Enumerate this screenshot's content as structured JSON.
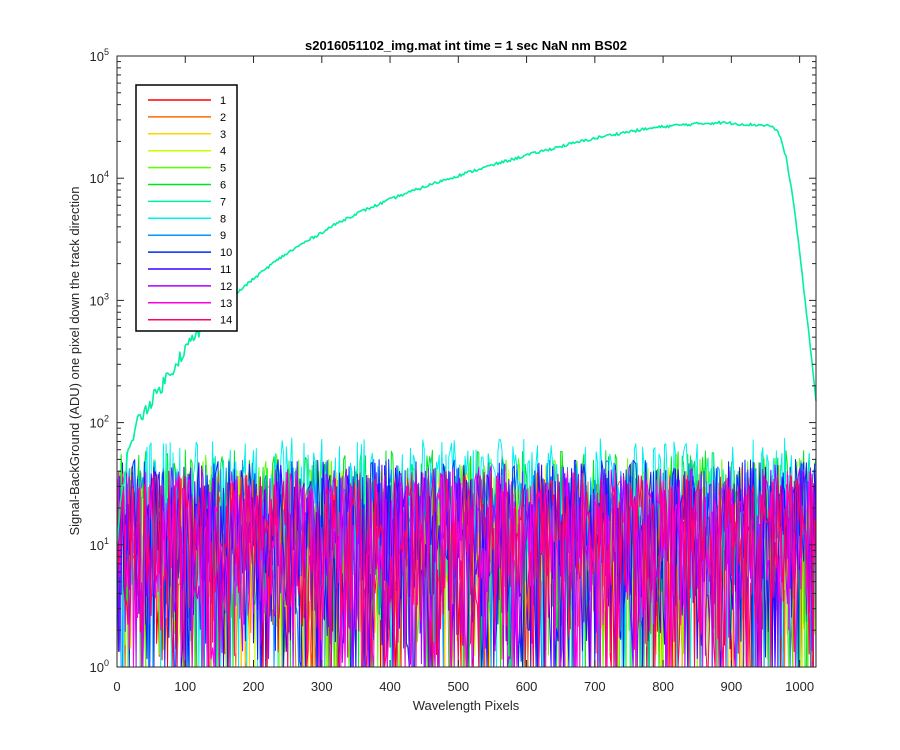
{
  "chart_data": {
    "type": "line",
    "title": "s2016051102_img.mat int time = 1 sec  NaN nm BS02",
    "xlabel": "Wavelength Pixels",
    "ylabel": "Signal-BackGround (ADU) one pixel down the track direction",
    "x_scale": "linear",
    "y_scale": "log",
    "xlim": [
      0,
      1024
    ],
    "ylim": [
      1,
      100000
    ],
    "x_ticks": [
      0,
      100,
      200,
      300,
      400,
      500,
      600,
      700,
      800,
      900,
      1000
    ],
    "x_tick_labels": [
      "0",
      "100",
      "200",
      "300",
      "400",
      "500",
      "600",
      "700",
      "800",
      "900",
      "1000"
    ],
    "y_ticks": [
      1,
      10,
      100,
      1000,
      10000,
      100000
    ],
    "y_tick_labels": [
      {
        "base": "10",
        "exp": "0"
      },
      {
        "base": "10",
        "exp": "1"
      },
      {
        "base": "10",
        "exp": "2"
      },
      {
        "base": "10",
        "exp": "3"
      },
      {
        "base": "10",
        "exp": "4"
      },
      {
        "base": "10",
        "exp": "5"
      }
    ],
    "grid": false,
    "legend_position": "top-left",
    "series": [
      {
        "name": "1",
        "color": "#ff0000",
        "kind": "noise",
        "low": 1,
        "high": 35
      },
      {
        "name": "2",
        "color": "#ff6a00",
        "kind": "noise",
        "low": 1,
        "high": 35
      },
      {
        "name": "3",
        "color": "#ffd200",
        "kind": "noise",
        "low": 1,
        "high": 40
      },
      {
        "name": "4",
        "color": "#c8ff00",
        "kind": "noise",
        "low": 1,
        "high": 45
      },
      {
        "name": "5",
        "color": "#5aff00",
        "kind": "noise",
        "low": 1,
        "high": 55
      },
      {
        "name": "6",
        "color": "#00e61e",
        "kind": "noise",
        "low": 2,
        "high": 60
      },
      {
        "name": "7",
        "color": "#00f0a0",
        "kind": "signal",
        "x": [
          0,
          5,
          10,
          15,
          20,
          30,
          40,
          50,
          60,
          70,
          80,
          90,
          100,
          110,
          120,
          130,
          140,
          150,
          160,
          170,
          180,
          190,
          200,
          220,
          240,
          260,
          280,
          300,
          320,
          340,
          360,
          380,
          400,
          420,
          440,
          460,
          480,
          500,
          520,
          540,
          560,
          580,
          600,
          620,
          640,
          660,
          680,
          700,
          720,
          740,
          760,
          780,
          800,
          820,
          840,
          860,
          880,
          900,
          920,
          940,
          950,
          960,
          970,
          980,
          990,
          1000,
          1010,
          1020,
          1024
        ],
        "y": [
          10,
          20,
          35,
          50,
          70,
          100,
          125,
          150,
          180,
          220,
          270,
          330,
          400,
          470,
          550,
          640,
          740,
          850,
          960,
          1080,
          1200,
          1350,
          1500,
          1850,
          2250,
          2650,
          3100,
          3600,
          4200,
          4800,
          5400,
          6000,
          6700,
          7400,
          8100,
          8900,
          9700,
          10500,
          11400,
          12300,
          13300,
          14300,
          15400,
          16500,
          17600,
          18800,
          20000,
          21200,
          22400,
          23500,
          24500,
          25500,
          26400,
          27100,
          27600,
          28100,
          28500,
          28200,
          27600,
          27300,
          27200,
          26500,
          23000,
          15000,
          7000,
          2500,
          800,
          250,
          150
        ]
      },
      {
        "name": "8",
        "color": "#00f0f0",
        "kind": "noise",
        "low": 3,
        "high": 75
      },
      {
        "name": "9",
        "color": "#0096ff",
        "kind": "noise",
        "low": 2,
        "high": 50
      },
      {
        "name": "10",
        "color": "#0028ff",
        "kind": "noise",
        "low": 1,
        "high": 50
      },
      {
        "name": "11",
        "color": "#3c00ff",
        "kind": "noise",
        "low": 1,
        "high": 48
      },
      {
        "name": "12",
        "color": "#aa00ff",
        "kind": "noise",
        "low": 1,
        "high": 45
      },
      {
        "name": "13",
        "color": "#ff00dc",
        "kind": "noise",
        "low": 1,
        "high": 42
      },
      {
        "name": "14",
        "color": "#ff0064",
        "kind": "noise",
        "low": 1,
        "high": 40
      }
    ]
  }
}
